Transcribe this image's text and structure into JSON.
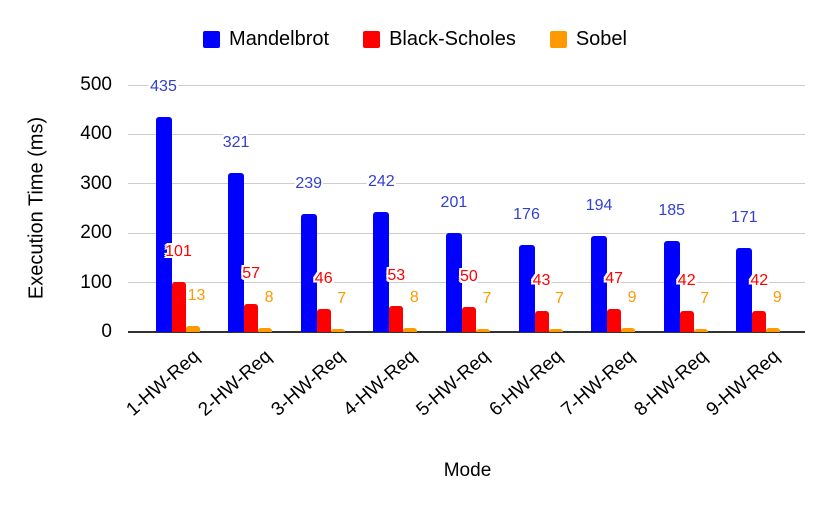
{
  "chart_data": {
    "type": "bar",
    "title": "",
    "xlabel": "Mode",
    "ylabel": "Execution Time (ms)",
    "categories": [
      "1-HW-Req",
      "2-HW-Req",
      "3-HW-Req",
      "4-HW-Req",
      "5-HW-Req",
      "6-HW-Req",
      "7-HW-Req",
      "8-HW-Req",
      "9-HW-Req"
    ],
    "series": [
      {
        "name": "Mandelbrot",
        "color": "#0000ff",
        "label_color": "#3340d2",
        "values": [
          435,
          321,
          239,
          242,
          201,
          176,
          194,
          185,
          171
        ]
      },
      {
        "name": "Black-Scholes",
        "color": "#ff0000",
        "label_color": "#ff0000",
        "values": [
          101,
          57,
          46,
          53,
          50,
          43,
          47,
          42,
          42
        ]
      },
      {
        "name": "Sobel",
        "color": "#ff9900",
        "label_color": "#ff9900",
        "values": [
          13,
          8,
          7,
          8,
          7,
          7,
          9,
          7,
          9
        ]
      }
    ],
    "yticks": [
      0,
      100,
      200,
      300,
      400,
      500
    ],
    "ylim": [
      0,
      500
    ],
    "grid": true,
    "legend_position": "top",
    "data_labels_visible": true
  },
  "style": {
    "background": "#ffffff",
    "gridline_color": "#cccccc",
    "axis_line_color": "#333333",
    "text_color": "#000000"
  }
}
